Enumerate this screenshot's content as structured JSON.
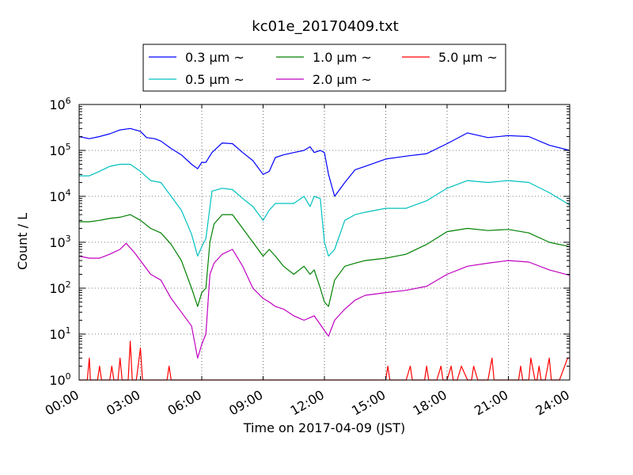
{
  "chart_data": {
    "type": "line",
    "title": "kc01e_20170409.txt",
    "xlabel": "Time on 2017-04-09 (JST)",
    "ylabel": "Count / L",
    "yscale": "log",
    "ylim": [
      1,
      1000000
    ],
    "xlim_hours": [
      0,
      24
    ],
    "grid": true,
    "legend_position": "top-center",
    "x_tick_labels": [
      "00:00",
      "03:00",
      "06:00",
      "09:00",
      "12:00",
      "15:00",
      "18:00",
      "21:00",
      "24:00"
    ],
    "y_tick_exponents": [
      "0",
      "1",
      "2",
      "3",
      "4",
      "5",
      "6"
    ],
    "y_tick_base": "10",
    "series": [
      {
        "name": "0.3 μm ~",
        "color": "#0000ff",
        "x": [
          0.0,
          0.5,
          1.0,
          1.5,
          2.0,
          2.5,
          3.0,
          3.3,
          3.7,
          4.0,
          4.5,
          5.0,
          5.5,
          5.8,
          6.0,
          6.2,
          6.5,
          7.0,
          7.5,
          8.0,
          8.5,
          9.0,
          9.3,
          9.6,
          10.0,
          10.5,
          11.0,
          11.3,
          11.5,
          11.8,
          12.0,
          12.2,
          12.5,
          13.0,
          13.5,
          14.0,
          15.0,
          16.0,
          17.0,
          18.0,
          19.0,
          20.0,
          21.0,
          22.0,
          23.0,
          24.0
        ],
        "values": [
          200000,
          180000,
          200000,
          230000,
          280000,
          300000,
          260000,
          190000,
          180000,
          160000,
          110000,
          80000,
          50000,
          40000,
          55000,
          55000,
          90000,
          145000,
          140000,
          90000,
          60000,
          30000,
          35000,
          70000,
          80000,
          90000,
          100000,
          120000,
          90000,
          100000,
          90000,
          30000,
          10000,
          20000,
          38000,
          45000,
          65000,
          75000,
          85000,
          140000,
          240000,
          190000,
          210000,
          200000,
          130000,
          100000
        ]
      },
      {
        "name": "0.5 μm ~",
        "color": "#00c0c0",
        "x": [
          0.0,
          0.5,
          1.0,
          1.5,
          2.0,
          2.5,
          3.0,
          3.5,
          4.0,
          4.5,
          5.0,
          5.5,
          5.8,
          6.0,
          6.2,
          6.5,
          7.0,
          7.5,
          8.0,
          8.5,
          9.0,
          9.3,
          9.6,
          10.0,
          10.5,
          11.0,
          11.3,
          11.5,
          11.8,
          12.0,
          12.2,
          12.5,
          13.0,
          13.5,
          14.0,
          15.0,
          16.0,
          17.0,
          18.0,
          19.0,
          20.0,
          21.0,
          22.0,
          23.0,
          24.0
        ],
        "values": [
          28000,
          28000,
          35000,
          45000,
          50000,
          50000,
          35000,
          22000,
          20000,
          10000,
          5000,
          1500,
          500,
          800,
          1200,
          13000,
          15000,
          14000,
          9000,
          6000,
          3000,
          5000,
          7000,
          7000,
          7000,
          10000,
          6000,
          10000,
          9000,
          1000,
          500,
          700,
          3000,
          4000,
          4500,
          5500,
          5500,
          8000,
          15000,
          22000,
          20000,
          22000,
          20000,
          12000,
          6500
        ]
      },
      {
        "name": "1.0 μm ~",
        "color": "#008000",
        "x": [
          0.0,
          0.5,
          1.0,
          1.5,
          2.0,
          2.5,
          3.0,
          3.5,
          4.0,
          4.5,
          5.0,
          5.5,
          5.8,
          6.0,
          6.2,
          6.4,
          6.6,
          7.0,
          7.5,
          8.0,
          8.5,
          9.0,
          9.3,
          9.6,
          10.0,
          10.5,
          11.0,
          11.3,
          11.5,
          11.8,
          12.0,
          12.2,
          12.5,
          13.0,
          13.5,
          14.0,
          15.0,
          16.0,
          17.0,
          18.0,
          19.0,
          20.0,
          21.0,
          22.0,
          23.0,
          24.0
        ],
        "values": [
          2800,
          2800,
          3000,
          3300,
          3500,
          4000,
          3000,
          2000,
          1600,
          900,
          400,
          100,
          40,
          80,
          100,
          1000,
          2500,
          4000,
          4000,
          2000,
          1000,
          500,
          700,
          500,
          300,
          200,
          300,
          200,
          250,
          100,
          50,
          40,
          150,
          300,
          350,
          400,
          450,
          550,
          900,
          1700,
          2000,
          1800,
          1900,
          1600,
          1000,
          800
        ]
      },
      {
        "name": "2.0 μm ~",
        "color": "#c000c0",
        "x": [
          0.0,
          0.5,
          1.0,
          1.5,
          2.0,
          2.3,
          2.7,
          3.0,
          3.5,
          4.0,
          4.5,
          5.0,
          5.5,
          5.8,
          6.0,
          6.2,
          6.4,
          6.6,
          7.0,
          7.5,
          8.0,
          8.5,
          9.0,
          9.3,
          9.6,
          10.0,
          10.5,
          11.0,
          11.5,
          12.0,
          12.2,
          12.5,
          13.0,
          13.5,
          14.0,
          15.0,
          16.0,
          17.0,
          18.0,
          19.0,
          20.0,
          21.0,
          22.0,
          23.0,
          24.0
        ],
        "values": [
          500,
          450,
          450,
          550,
          700,
          950,
          600,
          400,
          200,
          150,
          60,
          30,
          15,
          3,
          6,
          10,
          200,
          350,
          550,
          700,
          300,
          100,
          60,
          50,
          40,
          35,
          25,
          20,
          25,
          12,
          9,
          20,
          35,
          55,
          70,
          80,
          90,
          110,
          200,
          300,
          350,
          400,
          370,
          250,
          190
        ]
      },
      {
        "name": "5.0 μm ~",
        "color": "#ff0000",
        "x": [
          0.0,
          0.4,
          0.5,
          0.55,
          0.9,
          1.0,
          1.1,
          1.5,
          1.6,
          1.7,
          1.9,
          2.0,
          2.1,
          2.4,
          2.5,
          2.6,
          2.8,
          3.0,
          3.1,
          3.3,
          3.4,
          3.5,
          3.8,
          4.0,
          4.3,
          4.4,
          4.5,
          5.0,
          5.5,
          5.6,
          5.7,
          6.0,
          6.5,
          7.0,
          7.5,
          8.0,
          8.5,
          9.0,
          9.5,
          10.0,
          10.5,
          11.0,
          11.5,
          12.0,
          12.5,
          13.0,
          13.5,
          14.0,
          14.5,
          15.0,
          15.1,
          15.2,
          15.5,
          16.0,
          16.2,
          16.3,
          16.5,
          16.9,
          17.0,
          17.1,
          17.5,
          17.7,
          17.8,
          18.0,
          18.2,
          18.3,
          18.5,
          18.7,
          19.0,
          19.2,
          19.3,
          19.5,
          19.8,
          20.0,
          20.2,
          20.3,
          20.5,
          21.0,
          21.5,
          21.6,
          21.7,
          22.0,
          22.1,
          22.3,
          22.4,
          22.5,
          22.6,
          22.8,
          23.0,
          23.1,
          23.5,
          23.9,
          24.0
        ],
        "values": [
          1,
          1,
          3,
          1,
          1,
          2,
          1,
          1,
          2,
          1,
          1,
          3,
          1,
          1,
          7,
          1,
          1,
          5,
          1,
          1,
          1,
          1,
          1,
          1,
          1,
          2,
          1,
          1,
          1,
          1,
          1,
          1,
          1,
          1,
          1,
          1,
          1,
          1,
          1,
          1,
          1,
          1,
          1,
          1,
          1,
          1,
          1,
          1,
          1,
          1,
          2,
          1,
          1,
          1,
          2,
          1,
          1,
          1,
          2,
          1,
          1,
          2,
          1,
          1,
          2,
          1,
          1,
          2,
          1,
          1,
          2,
          1,
          1,
          1,
          3,
          1,
          1,
          1,
          1,
          2,
          1,
          1,
          3,
          1,
          1,
          2,
          1,
          1,
          3,
          1,
          1,
          3,
          3
        ]
      }
    ]
  }
}
